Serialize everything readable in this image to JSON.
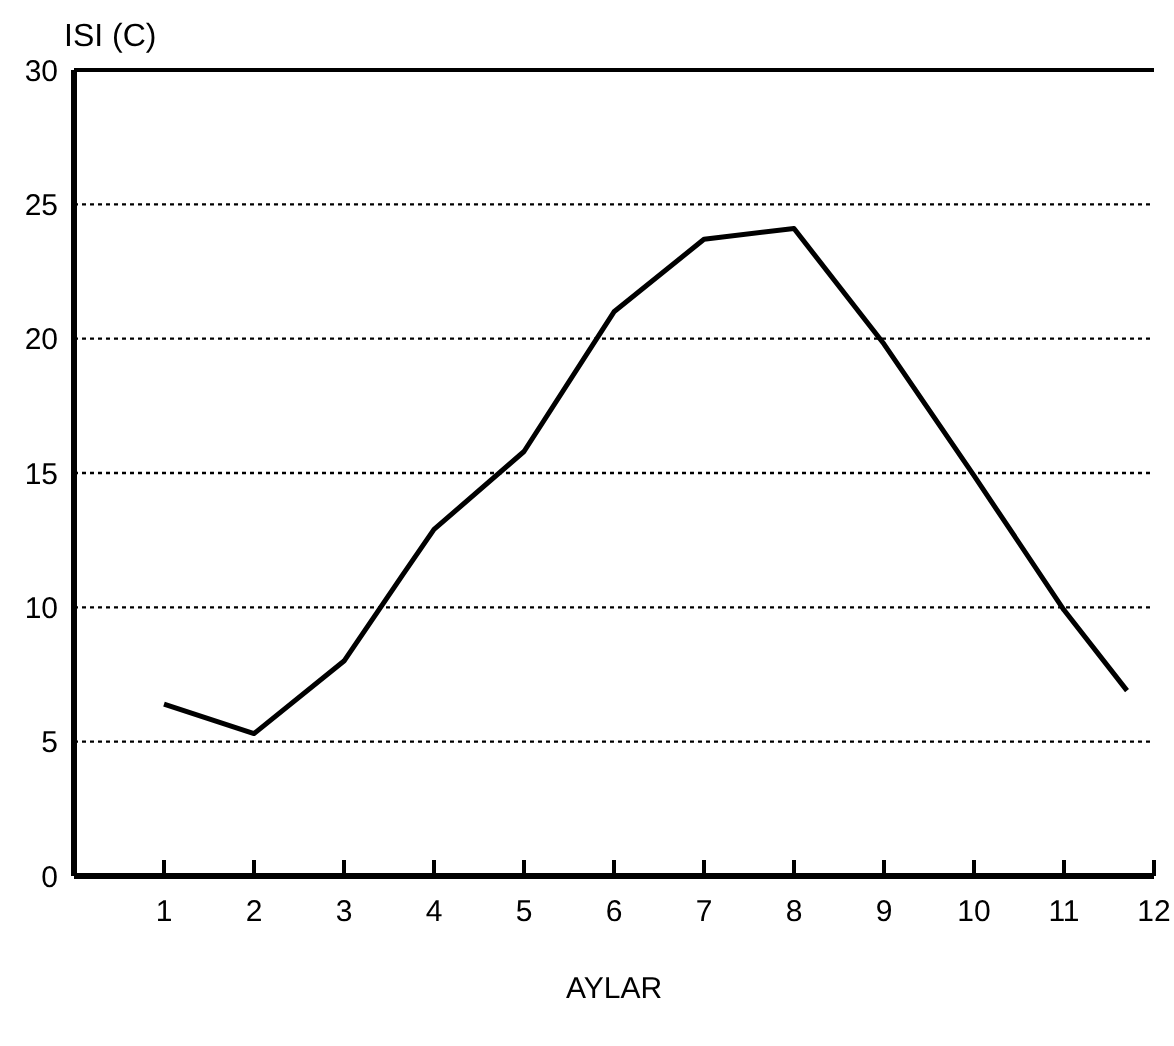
{
  "chart_data": {
    "type": "line",
    "xlabel": "AYLAR",
    "ylabel": "ISI (C)",
    "x": [
      1,
      2,
      3,
      3.65,
      4,
      5,
      6,
      7,
      8,
      9,
      10,
      11,
      11.7
    ],
    "series": [
      {
        "color": "#000000",
        "values": [
          6.4,
          5.3,
          8.0,
          11.2,
          12.9,
          15.8,
          21.0,
          23.7,
          24.1,
          19.8,
          14.9,
          9.9,
          6.9
        ]
      }
    ],
    "xlim": [
      0,
      12
    ],
    "xticks": [
      {
        "value": 0,
        "label": null
      },
      1,
      2,
      3,
      4,
      5,
      6,
      7,
      8,
      9,
      10,
      11,
      12
    ],
    "ylim": [
      0,
      30
    ],
    "yticks": [
      0,
      5,
      10,
      15,
      20,
      25,
      30
    ],
    "grid": "y",
    "marker": "none",
    "line_style": "solid"
  }
}
